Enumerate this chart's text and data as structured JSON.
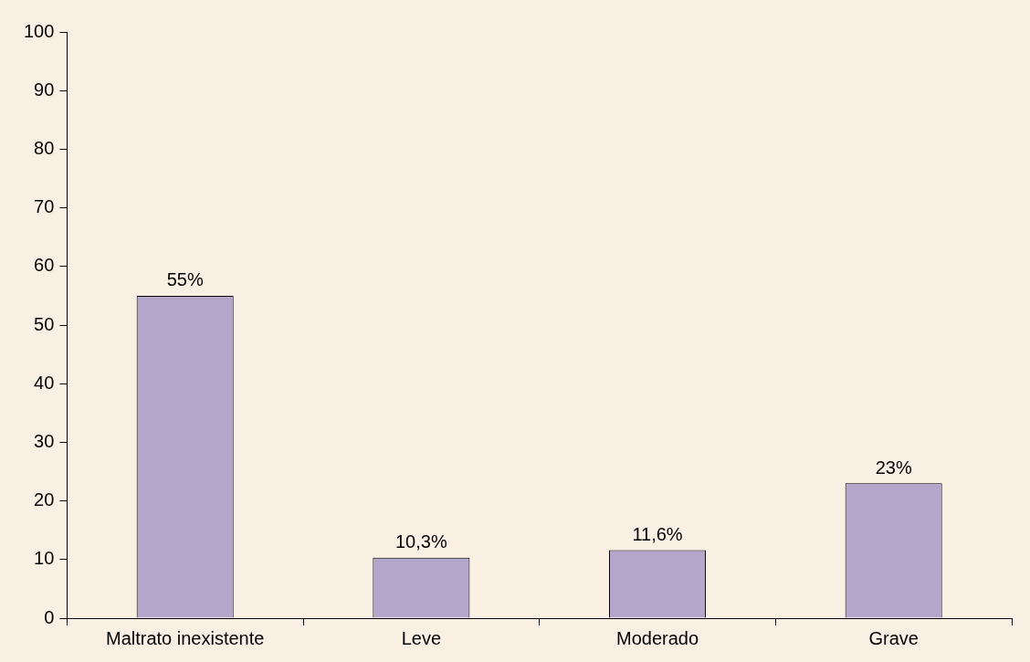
{
  "chart_data": {
    "type": "bar",
    "categories": [
      "Maltrato inexistente",
      "Leve",
      "Moderado",
      "Grave"
    ],
    "values": [
      55,
      10.3,
      11.6,
      23
    ],
    "color": "#b5a6cc",
    "value_labels": [
      "55%",
      "10,3%",
      "11,6%",
      "23%"
    ],
    "ylim": [
      0,
      100
    ],
    "yticks": [
      0,
      10,
      20,
      30,
      40,
      50,
      60,
      70,
      80,
      90,
      100
    ],
    "grid": false,
    "legend": false
  }
}
